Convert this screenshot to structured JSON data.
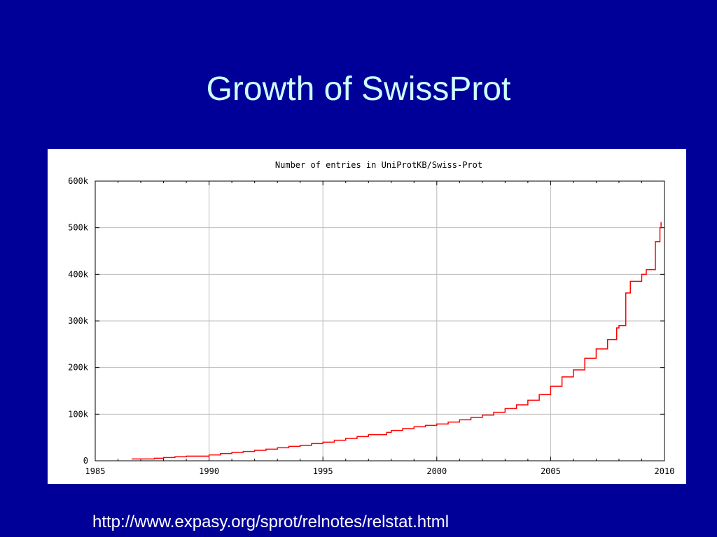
{
  "slide": {
    "title": "Growth of SwissProt",
    "source_url": "http://www.expasy.org/sprot/relnotes/relstat.html"
  },
  "colors": {
    "background": "#000099",
    "title": "#ccffff",
    "line": "#ff0000",
    "grid": "#bbbbbb"
  },
  "chart_data": {
    "type": "line",
    "title": "Number of entries in UniProtKB/Swiss-Prot",
    "xlabel": "",
    "ylabel": "",
    "xlim": [
      1985,
      2010
    ],
    "ylim": [
      0,
      600000
    ],
    "x_ticks": [
      1985,
      1990,
      1995,
      2000,
      2005,
      2010
    ],
    "x_tick_labels": [
      "1985",
      "1990",
      "1995",
      "2000",
      "2005",
      "2010"
    ],
    "y_ticks": [
      0,
      100000,
      200000,
      300000,
      400000,
      500000,
      600000
    ],
    "y_tick_labels": [
      "0",
      "100k",
      "200k",
      "300k",
      "400k",
      "500k",
      "600k"
    ],
    "grid": true,
    "step": true,
    "series": [
      {
        "color": "#ff0000",
        "x": [
          1986.6,
          1987.6,
          1988.0,
          1988.5,
          1989.0,
          1990.0,
          1990.5,
          1991.0,
          1991.5,
          1992.0,
          1992.5,
          1993.0,
          1993.5,
          1994.0,
          1994.5,
          1995.0,
          1995.5,
          1996.0,
          1996.5,
          1997.0,
          1997.8,
          1998.0,
          1998.5,
          1999.0,
          1999.5,
          2000.0,
          2000.5,
          2001.0,
          2001.5,
          2002.0,
          2002.5,
          2003.0,
          2003.5,
          2004.0,
          2004.5,
          2005.0,
          2005.5,
          2006.0,
          2006.5,
          2007.0,
          2007.5,
          2007.9,
          2008.0,
          2008.3,
          2008.5,
          2009.0,
          2009.2,
          2009.6,
          2009.8,
          2009.85
        ],
        "y": [
          3900,
          5500,
          7000,
          8700,
          10000,
          12500,
          15500,
          18000,
          20000,
          22500,
          25000,
          28000,
          31000,
          33000,
          37000,
          40000,
          44000,
          48000,
          52000,
          56000,
          61000,
          65000,
          69000,
          73000,
          76000,
          79000,
          83000,
          88000,
          93000,
          98000,
          104000,
          112000,
          120000,
          130000,
          142000,
          160000,
          180000,
          195000,
          220000,
          240000,
          260000,
          285000,
          290000,
          360000,
          385000,
          400000,
          410000,
          470000,
          500000,
          512000
        ]
      }
    ]
  }
}
